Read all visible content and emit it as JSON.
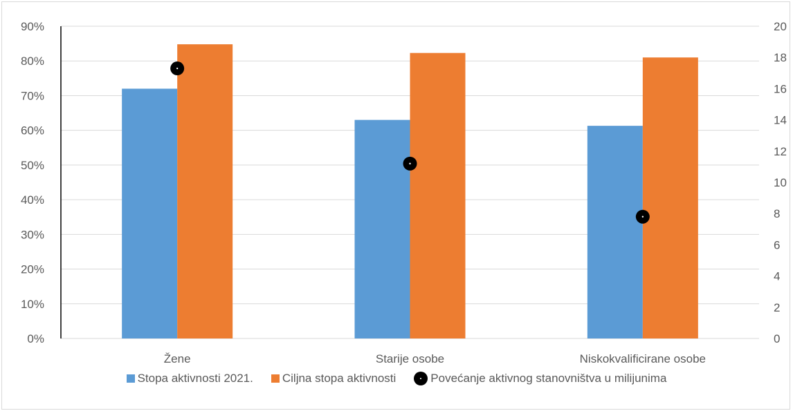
{
  "chart_data": {
    "type": "bar",
    "categories": [
      "Žene",
      "Starije osobe",
      "Niskokvalificirane osobe"
    ],
    "series": [
      {
        "name": "Stopa aktivnosti 2021.",
        "axis": "left",
        "kind": "bar",
        "color": "#5b9bd5",
        "values": [
          0.72,
          0.63,
          0.613
        ]
      },
      {
        "name": "Ciljna stopa aktivnosti",
        "axis": "left",
        "kind": "bar",
        "color": "#ed7d31",
        "values": [
          0.848,
          0.823,
          0.81
        ]
      },
      {
        "name": "Povećanje aktivnog stanovništva u milijunima",
        "axis": "right",
        "kind": "scatter",
        "color": "#000000",
        "values": [
          17.3,
          11.2,
          7.8
        ]
      }
    ],
    "y_left": {
      "min": 0,
      "max": 0.9,
      "ticks": [
        "0%",
        "10%",
        "20%",
        "30%",
        "40%",
        "50%",
        "60%",
        "70%",
        "80%",
        "90%"
      ]
    },
    "y_right": {
      "min": 0,
      "max": 20,
      "ticks": [
        "0",
        "2",
        "4",
        "6",
        "8",
        "10",
        "12",
        "14",
        "16",
        "18",
        "20"
      ]
    },
    "grid": true,
    "legend_position": "bottom"
  }
}
